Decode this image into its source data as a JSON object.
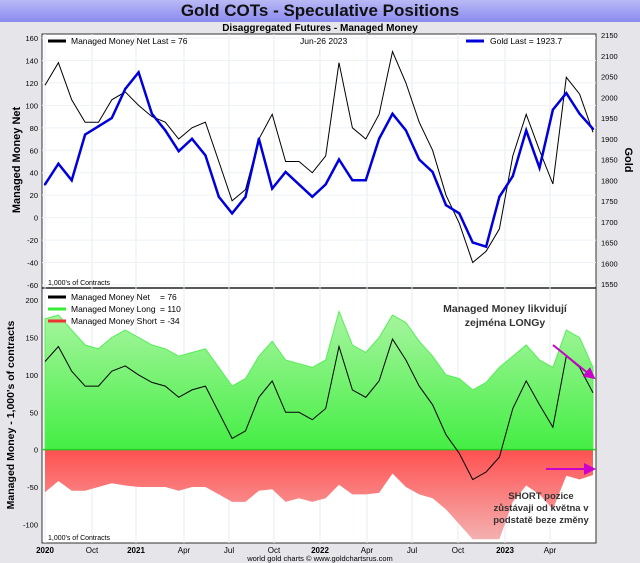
{
  "title": "Gold COTs - Speculative Positions",
  "subtitle": "Disaggregated Futures - Managed Money",
  "footer": "world gold charts © www.goldchartsrus.com",
  "annotations": {
    "longs": "Managed Money likvidují zejména LONGy",
    "shorts": "SHORT pozice zůstávaji od května v podstatě beze změny"
  },
  "colors": {
    "net": "#000000",
    "gold": "#0000dd",
    "long": "#33ee33",
    "short": "#ee3333",
    "arrow": "#cc00cc"
  },
  "chart_data": [
    {
      "type": "line",
      "title": "Disaggregated Futures - Managed Money",
      "date": "Jun-26  2023",
      "legend": [
        {
          "label": "Managed Money Net   Last = 76"
        },
        {
          "label": "Gold Last = 1923.7"
        }
      ],
      "ylabel": "Managed Money Net",
      "y2label": "Gold",
      "unit_note": "1,000's of Contracts",
      "ylim": [
        -60,
        160
      ],
      "yticks": [
        160,
        140,
        120,
        100,
        80,
        60,
        40,
        20,
        0,
        -20,
        -40,
        -60
      ],
      "y2lim": [
        1550,
        2150
      ],
      "y2ticks": [
        2150,
        2100,
        2050,
        2000,
        1950,
        1900,
        1850,
        1800,
        1750,
        1700,
        1650,
        1600,
        1550
      ],
      "series": [
        {
          "name": "Managed Money Net",
          "values": [
            118,
            138,
            105,
            85,
            85,
            105,
            112,
            100,
            90,
            85,
            70,
            80,
            85,
            50,
            15,
            25,
            70,
            92,
            50,
            50,
            40,
            55,
            138,
            80,
            70,
            92,
            148,
            120,
            85,
            60,
            20,
            -5,
            -40,
            -30,
            -10,
            55,
            92,
            60,
            30,
            125,
            110,
            76
          ]
        },
        {
          "name": "Gold",
          "values": [
            1790,
            1840,
            1800,
            1910,
            1930,
            1950,
            2020,
            2060,
            1960,
            1920,
            1870,
            1900,
            1860,
            1760,
            1720,
            1760,
            1900,
            1780,
            1820,
            1790,
            1760,
            1790,
            1850,
            1800,
            1800,
            1900,
            1960,
            1920,
            1850,
            1820,
            1740,
            1720,
            1650,
            1640,
            1760,
            1810,
            1920,
            1830,
            1970,
            2010,
            1960,
            1923.7
          ]
        }
      ]
    },
    {
      "type": "area",
      "ylabel": "Managed Money - 1,000's of contracts",
      "unit_note": "1,000's of Contracts",
      "legend": [
        {
          "label": "Managed Money Net",
          "value": "= 76"
        },
        {
          "label": "Managed Money Long",
          "value": "= 110"
        },
        {
          "label": "Managed Money Short",
          "value": "= -34"
        }
      ],
      "ylim": [
        -125,
        215
      ],
      "yticks": [
        200,
        150,
        100,
        50,
        0,
        -50,
        -100
      ],
      "series": [
        {
          "name": "Managed Money Net",
          "values": [
            118,
            138,
            105,
            85,
            85,
            105,
            112,
            100,
            90,
            85,
            70,
            80,
            85,
            50,
            15,
            25,
            70,
            92,
            50,
            50,
            40,
            55,
            138,
            80,
            70,
            92,
            148,
            120,
            85,
            60,
            20,
            -5,
            -40,
            -30,
            -10,
            55,
            92,
            60,
            30,
            125,
            110,
            76
          ]
        },
        {
          "name": "Managed Money Long",
          "values": [
            175,
            180,
            160,
            140,
            135,
            150,
            160,
            150,
            140,
            135,
            125,
            130,
            135,
            110,
            85,
            95,
            125,
            145,
            120,
            115,
            110,
            120,
            185,
            140,
            130,
            150,
            180,
            170,
            145,
            125,
            100,
            95,
            80,
            90,
            110,
            125,
            140,
            120,
            110,
            160,
            150,
            110
          ]
        },
        {
          "name": "Managed Money Short",
          "values": [
            -57,
            -42,
            -55,
            -55,
            -50,
            -45,
            -48,
            -50,
            -50,
            -50,
            -55,
            -50,
            -50,
            -60,
            -70,
            -70,
            -55,
            -53,
            -70,
            -65,
            -70,
            -65,
            -47,
            -60,
            -60,
            -58,
            -32,
            -50,
            -60,
            -65,
            -80,
            -100,
            -120,
            -120,
            -120,
            -70,
            -48,
            -60,
            -80,
            -35,
            -40,
            -34
          ]
        }
      ]
    }
  ],
  "xticks": [
    "2020",
    "Oct",
    "2021",
    "Apr",
    "Jul",
    "Oct",
    "2022",
    "Apr",
    "Jul",
    "Oct",
    "2023",
    "Apr"
  ]
}
